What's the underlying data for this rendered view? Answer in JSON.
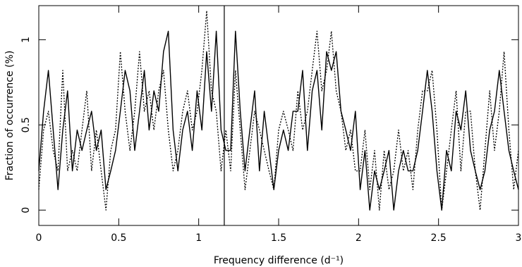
{
  "chart_data": {
    "type": "line",
    "xlabel": "Frequency difference (d⁻¹)",
    "ylabel": "Fraction of occurrence (%)",
    "xlim": [
      0,
      3
    ],
    "ylim": [
      -0.09,
      1.2
    ],
    "xticks": [
      0,
      0.5,
      1,
      1.5,
      2,
      2.5,
      3
    ],
    "yticks": [
      0,
      0.5,
      1
    ],
    "vline": 1.16,
    "x": [
      0,
      0.03,
      0.06,
      0.09,
      0.12,
      0.15,
      0.18,
      0.21,
      0.24,
      0.27,
      0.3,
      0.33,
      0.36,
      0.39,
      0.42,
      0.45,
      0.48,
      0.51,
      0.54,
      0.57,
      0.6,
      0.63,
      0.66,
      0.69,
      0.72,
      0.75,
      0.78,
      0.81,
      0.84,
      0.87,
      0.9,
      0.93,
      0.96,
      0.99,
      1.02,
      1.05,
      1.08,
      1.11,
      1.14,
      1.17,
      1.2,
      1.23,
      1.26,
      1.29,
      1.32,
      1.35,
      1.38,
      1.41,
      1.44,
      1.47,
      1.5,
      1.53,
      1.56,
      1.59,
      1.62,
      1.65,
      1.68,
      1.71,
      1.74,
      1.77,
      1.8,
      1.83,
      1.86,
      1.89,
      1.92,
      1.95,
      1.98,
      2.01,
      2.04,
      2.07,
      2.1,
      2.13,
      2.16,
      2.19,
      2.22,
      2.25,
      2.28,
      2.31,
      2.34,
      2.37,
      2.4,
      2.43,
      2.46,
      2.49,
      2.52,
      2.55,
      2.58,
      2.61,
      2.64,
      2.67,
      2.7,
      2.73,
      2.76,
      2.79,
      2.82,
      2.85,
      2.88,
      2.91,
      2.94,
      2.97,
      3
    ],
    "series": [
      {
        "color": "#000000",
        "dash": "solid",
        "values": [
          0.23,
          0.58,
          0.82,
          0.47,
          0.12,
          0.47,
          0.7,
          0.23,
          0.47,
          0.35,
          0.47,
          0.58,
          0.35,
          0.47,
          0.12,
          0.23,
          0.35,
          0.58,
          0.82,
          0.7,
          0.35,
          0.58,
          0.82,
          0.47,
          0.7,
          0.58,
          0.93,
          1.05,
          0.47,
          0.23,
          0.47,
          0.58,
          0.35,
          0.7,
          0.47,
          0.93,
          0.58,
          1.05,
          0.47,
          0.35,
          0.35,
          1.05,
          0.58,
          0.23,
          0.47,
          0.7,
          0.23,
          0.58,
          0.35,
          0.12,
          0.35,
          0.47,
          0.35,
          0.58,
          0.58,
          0.82,
          0.35,
          0.7,
          0.82,
          0.47,
          0.93,
          0.82,
          0.93,
          0.58,
          0.47,
          0.35,
          0.58,
          0.12,
          0.35,
          0.0,
          0.23,
          0.12,
          0.23,
          0.35,
          0.0,
          0.23,
          0.35,
          0.23,
          0.23,
          0.35,
          0.58,
          0.82,
          0.58,
          0.23,
          0.0,
          0.35,
          0.23,
          0.58,
          0.47,
          0.7,
          0.35,
          0.23,
          0.12,
          0.23,
          0.47,
          0.58,
          0.82,
          0.58,
          0.35,
          0.23,
          0.12
        ]
      },
      {
        "color": "#000000",
        "dash": "dotted",
        "values": [
          0.12,
          0.47,
          0.58,
          0.35,
          0.23,
          0.82,
          0.23,
          0.35,
          0.23,
          0.47,
          0.7,
          0.23,
          0.47,
          0.23,
          0.0,
          0.35,
          0.47,
          0.93,
          0.58,
          0.35,
          0.58,
          0.93,
          0.58,
          0.7,
          0.47,
          0.7,
          0.82,
          0.47,
          0.23,
          0.35,
          0.58,
          0.7,
          0.47,
          0.58,
          0.82,
          1.17,
          0.7,
          0.58,
          0.23,
          0.47,
          0.23,
          0.82,
          0.47,
          0.12,
          0.35,
          0.58,
          0.47,
          0.35,
          0.23,
          0.12,
          0.47,
          0.58,
          0.47,
          0.35,
          0.7,
          0.47,
          0.58,
          0.82,
          1.05,
          0.7,
          0.82,
          1.05,
          0.7,
          0.58,
          0.35,
          0.47,
          0.23,
          0.23,
          0.47,
          0.12,
          0.35,
          0.0,
          0.35,
          0.12,
          0.23,
          0.47,
          0.23,
          0.35,
          0.12,
          0.47,
          0.7,
          0.7,
          0.82,
          0.47,
          0.0,
          0.23,
          0.47,
          0.7,
          0.23,
          0.58,
          0.58,
          0.23,
          0.0,
          0.35,
          0.7,
          0.35,
          0.58,
          0.93,
          0.47,
          0.12,
          0.35
        ]
      }
    ]
  }
}
